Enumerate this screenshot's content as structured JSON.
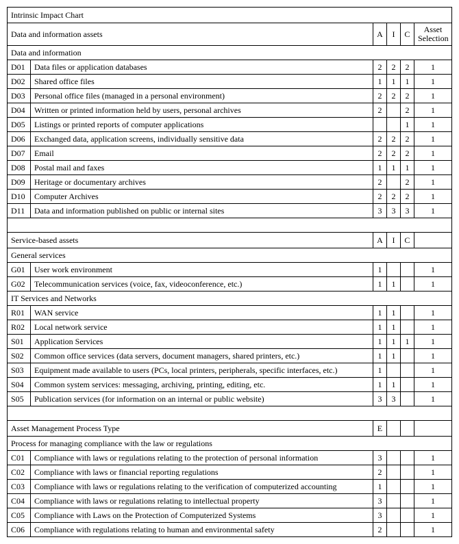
{
  "title": "Intrinsic Impact Chart",
  "part1": {
    "header": {
      "label": "Data and information assets",
      "a": "A",
      "i": "I",
      "c": "C",
      "sel": "Asset Selection"
    },
    "section": "Data and information",
    "rows": [
      {
        "code": "D01",
        "desc": "Data files or application databases",
        "a": "2",
        "i": "2",
        "c": "2",
        "sel": "1"
      },
      {
        "code": "D02",
        "desc": "Shared office files",
        "a": "1",
        "i": "1",
        "c": "1",
        "sel": "1"
      },
      {
        "code": "D03",
        "desc": "Personal office files (managed in a personal environment)",
        "a": "2",
        "i": "2",
        "c": "2",
        "sel": "1"
      },
      {
        "code": "D04",
        "desc": "Written or printed information held by users, personal archives",
        "a": "2",
        "i": "",
        "c": "2",
        "sel": "1"
      },
      {
        "code": "D05",
        "desc": "Listings or printed reports of computer applications",
        "a": "",
        "i": "",
        "c": "1",
        "sel": "1"
      },
      {
        "code": "D06",
        "desc": "Exchanged data, application screens, individually sensitive data",
        "a": "2",
        "i": "2",
        "c": "2",
        "sel": "1"
      },
      {
        "code": "D07",
        "desc": "Email",
        "a": "2",
        "i": "2",
        "c": "2",
        "sel": "1"
      },
      {
        "code": "D08",
        "desc": "Postal mail and faxes",
        "a": "1",
        "i": "1",
        "c": "1",
        "sel": "1"
      },
      {
        "code": "D09",
        "desc": "Heritage or documentary archives",
        "a": "2",
        "i": "",
        "c": "2",
        "sel": "1"
      },
      {
        "code": "D10",
        "desc": "Computer Archives",
        "a": "2",
        "i": "2",
        "c": "2",
        "sel": "1"
      },
      {
        "code": "D11",
        "desc": "Data and information published on public or internal sites",
        "a": "3",
        "i": "3",
        "c": "3",
        "sel": "1"
      }
    ]
  },
  "part2": {
    "header": {
      "label": "Service-based assets",
      "a": "A",
      "i": "I",
      "c": "C",
      "sel": ""
    },
    "section1": "General services",
    "rows1": [
      {
        "code": "G01",
        "desc": "User work environment",
        "a": "1",
        "i": "",
        "c": "",
        "sel": "1"
      },
      {
        "code": "G02",
        "desc": "Telecommunication services (voice, fax, videoconference, etc.)",
        "a": "1",
        "i": "1",
        "c": "",
        "sel": "1"
      }
    ],
    "section2": "IT Services and Networks",
    "rows2": [
      {
        "code": "R01",
        "desc": "WAN service",
        "a": "1",
        "i": "1",
        "c": "",
        "sel": "1"
      },
      {
        "code": "R02",
        "desc": "Local network service",
        "a": "1",
        "i": "1",
        "c": "",
        "sel": "1"
      },
      {
        "code": "S01",
        "desc": "Application Services",
        "a": "1",
        "i": "1",
        "c": "1",
        "sel": "1"
      },
      {
        "code": "S02",
        "desc": "Common office services (data servers, document managers, shared printers, etc.)",
        "a": "1",
        "i": "1",
        "c": "",
        "sel": "1"
      },
      {
        "code": "S03",
        "desc": "Equipment made available to users (PCs, local printers, peripherals, specific interfaces, etc.)",
        "a": "1",
        "i": "",
        "c": "",
        "sel": "1"
      },
      {
        "code": "S04",
        "desc": "Common system services: messaging, archiving, printing, editing, etc.",
        "a": "1",
        "i": "1",
        "c": "",
        "sel": "1"
      },
      {
        "code": "S05",
        "desc": "Publication services (for information on an internal or public website)",
        "a": "3",
        "i": "3",
        "c": "",
        "sel": "1"
      }
    ]
  },
  "part3": {
    "header": {
      "label": "Asset Management Process Type",
      "a": "E",
      "i": "",
      "c": "",
      "sel": ""
    },
    "section": "Process for managing compliance with the law or regulations",
    "rows": [
      {
        "code": "C01",
        "desc": "Compliance with laws or regulations relating to the protection of personal information",
        "a": "3",
        "i": "",
        "c": "",
        "sel": "1"
      },
      {
        "code": "C02",
        "desc": "Compliance with laws or financial reporting regulations",
        "a": "2",
        "i": "",
        "c": "",
        "sel": "1"
      },
      {
        "code": "C03",
        "desc": "Compliance with laws or regulations relating to the verification of computerized accounting",
        "a": "1",
        "i": "",
        "c": "",
        "sel": "1"
      },
      {
        "code": "C04",
        "desc": "Compliance with laws or regulations relating to intellectual property",
        "a": "3",
        "i": "",
        "c": "",
        "sel": "1"
      },
      {
        "code": "C05",
        "desc": "Compliance with Laws on the Protection of Computerized Systems",
        "a": "3",
        "i": "",
        "c": "",
        "sel": "1"
      },
      {
        "code": "C06",
        "desc": "Compliance with regulations relating to human and environmental safety",
        "a": "2",
        "i": "",
        "c": "",
        "sel": "1"
      }
    ]
  }
}
